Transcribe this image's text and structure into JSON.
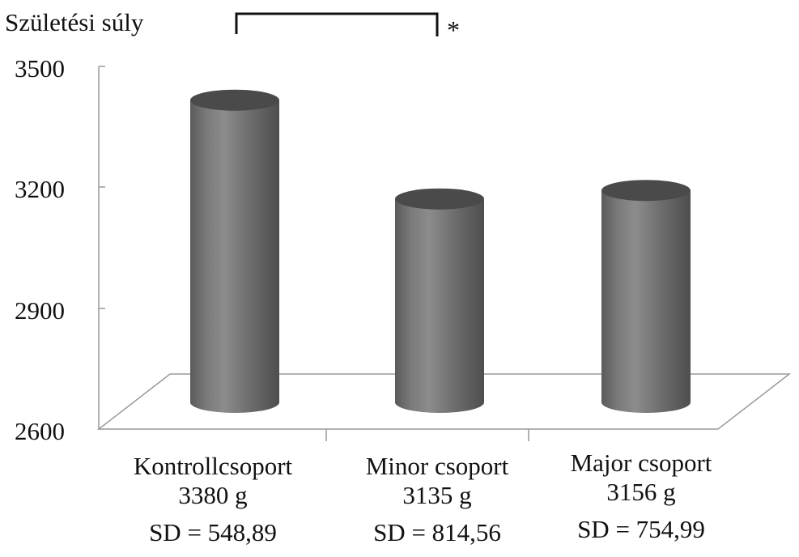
{
  "chart_data": {
    "type": "bar",
    "bar_shape": "cylinder",
    "ylabel": "Születési súly",
    "ylim": [
      2600,
      3500
    ],
    "yticks": [
      "3500",
      "3200",
      "2900",
      "2600"
    ],
    "categories": [
      {
        "name": "Kontrollcsoport",
        "mean_label": "3380 g",
        "sd_label": "SD = 548,89"
      },
      {
        "name": "Minor csoport",
        "mean_label": "3135 g",
        "sd_label": "SD = 814,56"
      },
      {
        "name": "Major csoport",
        "mean_label": "3156 g",
        "sd_label": "SD = 754,99"
      }
    ],
    "values": [
      3380,
      3135,
      3156
    ],
    "significance": {
      "between": [
        "Kontrollcsoport",
        "Minor csoport"
      ],
      "label": "*"
    },
    "colors": {
      "bar": "#6b6b6b",
      "bar_top": "#4a4a4a",
      "axis": "#888888"
    },
    "grid": false
  }
}
